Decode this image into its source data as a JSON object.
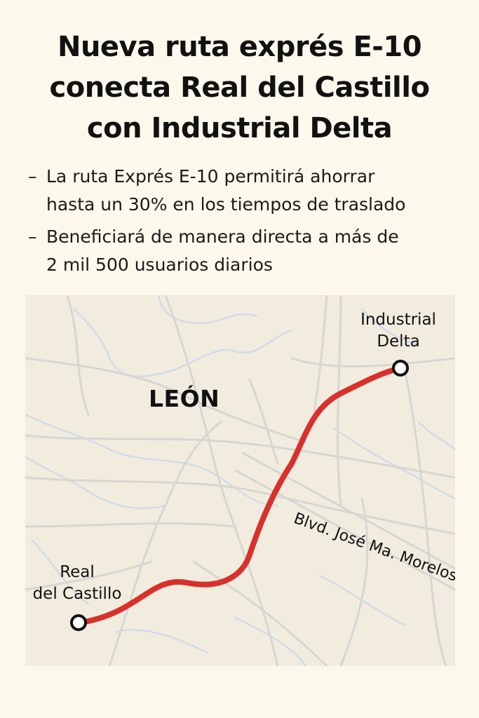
{
  "headline": {
    "line1": "Nueva ruta exprés E-10",
    "line2": "conecta Real del Castillo",
    "line3": "con Industrial Delta"
  },
  "bullets": [
    {
      "dash": "–",
      "line1": "La ruta Exprés E-10 permitirá ahorrar",
      "line2": "hasta un 30% en los tiempos de traslado"
    },
    {
      "dash": "–",
      "line1": "Beneficiará de manera directa a más de",
      "line2": "2 mil 500 usuarios diarios"
    }
  ],
  "map": {
    "city_label": "LEÓN",
    "street_label": "Blvd. José Ma. Morelos",
    "route_color": "#d9302c",
    "background_color": "#f2ecdf",
    "road_color": "#d6d6d3",
    "water_color": "#cfdce8",
    "stops": [
      {
        "name_line1": "Industrial",
        "name_line2": "Delta",
        "marker": "circle-stop-icon"
      },
      {
        "name_line1": "Real",
        "name_line2": "del Castillo",
        "marker": "circle-stop-icon"
      }
    ]
  }
}
